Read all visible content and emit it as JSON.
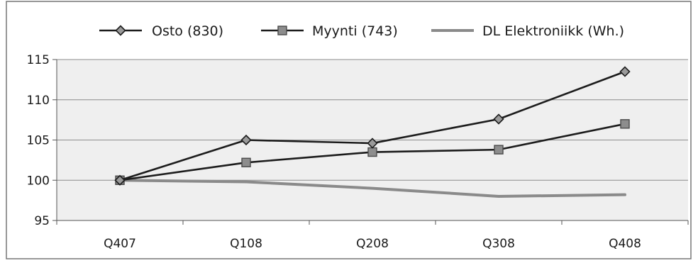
{
  "chart_data": {
    "type": "line",
    "title": "",
    "xlabel": "",
    "ylabel": "",
    "categories": [
      "Q407",
      "Q108",
      "Q208",
      "Q308",
      "Q408"
    ],
    "ylim": [
      95,
      115
    ],
    "yticks": [
      95,
      100,
      105,
      110,
      115
    ],
    "grid": true,
    "legend_position": "top",
    "series": [
      {
        "name": "Osto (830)",
        "values": [
          100,
          105,
          104.6,
          107.6,
          113.5
        ],
        "marker": "diamond",
        "color": "#1c1c1c"
      },
      {
        "name": "Myynti (743)",
        "values": [
          100,
          102.2,
          103.5,
          103.8,
          107
        ],
        "marker": "square",
        "color": "#1c1c1c"
      },
      {
        "name": "DL Elektroniikk (Wh.)",
        "values": [
          100,
          99.8,
          99,
          98,
          98.2
        ],
        "marker": "none",
        "color": "#8a8a8a"
      }
    ]
  }
}
